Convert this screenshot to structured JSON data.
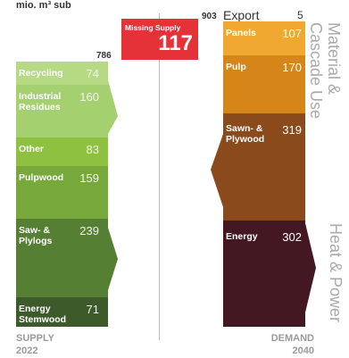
{
  "unit": "mio. m³ sub",
  "totals": {
    "supply_total": "786",
    "demand_total": "903",
    "export_label": "Export",
    "export_value": "5"
  },
  "missing_supply": {
    "label": "Missing Supply",
    "value": "117"
  },
  "supply": {
    "footer_line1": "SUPPLY",
    "footer_line2": "2022",
    "items": [
      {
        "label": "Recycling",
        "value": "74",
        "color": "#b6da84"
      },
      {
        "label": "Industrial Residues",
        "value": "160",
        "color": "#a5d06f"
      },
      {
        "label": "Other",
        "value": "83",
        "color": "#8dc13f"
      },
      {
        "label": "Pulpwood",
        "value": "159",
        "color": "#77a83b"
      },
      {
        "label": "Saw- & Plylogs",
        "value": "239",
        "color": "#557f32"
      },
      {
        "label": "Energy Stemwood",
        "value": "71",
        "color": "#3d5a2a"
      }
    ]
  },
  "demand": {
    "footer_line1": "DEMAND",
    "footer_line2": "2040",
    "items": [
      {
        "label": "Panels",
        "value": "107",
        "color": "#f0a830"
      },
      {
        "label": "Pulp",
        "value": "170",
        "color": "#d68619"
      },
      {
        "label": "Sawn- & Plywood",
        "value": "319",
        "color": "#8a4a1c"
      },
      {
        "label": "Energy",
        "value": "302",
        "color": "#431823"
      }
    ]
  },
  "side_titles": {
    "material": "Material & Cascade Use",
    "material_line1": "Material &",
    "material_line2": "Cascade Use",
    "heat": "Heat & Power"
  }
}
